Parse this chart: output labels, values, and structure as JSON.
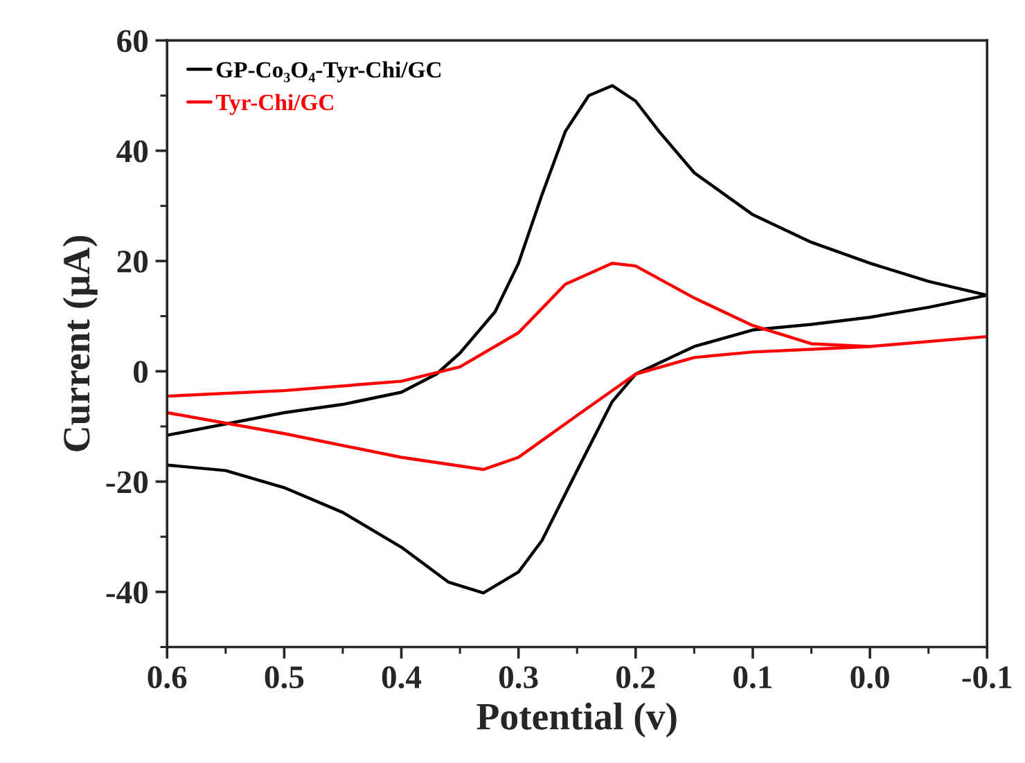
{
  "chart_data": {
    "type": "line",
    "xlabel": "Potential (v)",
    "ylabel": "Current (μA)",
    "xlim": [
      0.6,
      -0.1
    ],
    "ylim": [
      -50,
      60
    ],
    "xticks": [
      0.6,
      0.5,
      0.4,
      0.3,
      0.2,
      0.1,
      {
        "value": 0.0,
        "label": "0.0"
      },
      -0.1
    ],
    "yticks": [
      -40,
      -20,
      0,
      20,
      40,
      60
    ],
    "grid": false,
    "legend": "top left",
    "marker": "none",
    "line_style": "solid",
    "series": [
      {
        "name": "GP-Co₃O₄-Tyr-Chi/GC",
        "color": "#000000",
        "x": [
          0.6,
          0.5,
          0.45,
          0.4,
          0.37,
          0.35,
          0.32,
          0.3,
          0.28,
          0.26,
          0.24,
          0.22,
          0.2,
          0.18,
          0.15,
          0.1,
          0.05,
          0.0,
          -0.05,
          -0.1,
          -0.05,
          0.0,
          0.05,
          0.1,
          0.15,
          0.2,
          0.22,
          0.25,
          0.28,
          0.3,
          0.33,
          0.36,
          0.4,
          0.45,
          0.5,
          0.55,
          0.6
        ],
        "values": [
          -11.6,
          -7.5,
          -6,
          -3.8,
          -0.5,
          3.3,
          10.8,
          19.6,
          32,
          43.5,
          50,
          51.8,
          49,
          43.5,
          36,
          28.4,
          23.4,
          19.6,
          16.3,
          13.8,
          11.6,
          9.8,
          8.5,
          7.5,
          4.5,
          -0.5,
          -5.5,
          -18,
          -30.7,
          -36.4,
          -40.2,
          -38.2,
          -31.9,
          -25.6,
          -21.1,
          -18,
          -17
        ]
      },
      {
        "name": "Tyr-Chi/GC",
        "color": "#ff0000",
        "x": [
          0.6,
          0.5,
          0.4,
          0.35,
          0.3,
          0.26,
          0.22,
          0.2,
          0.15,
          0.1,
          0.05,
          0.0,
          -0.1,
          0.0,
          0.1,
          0.15,
          0.2,
          0.25,
          0.3,
          0.33,
          0.4,
          0.5,
          0.6
        ],
        "values": [
          -4.5,
          -3.5,
          -1.8,
          0.8,
          7,
          15.8,
          19.6,
          19.1,
          13.3,
          8.3,
          5,
          4.5,
          6.3,
          4.5,
          3.5,
          2.5,
          -0.5,
          -8,
          -15.6,
          -17.8,
          -15.6,
          -11.3,
          -7.5
        ]
      }
    ]
  }
}
